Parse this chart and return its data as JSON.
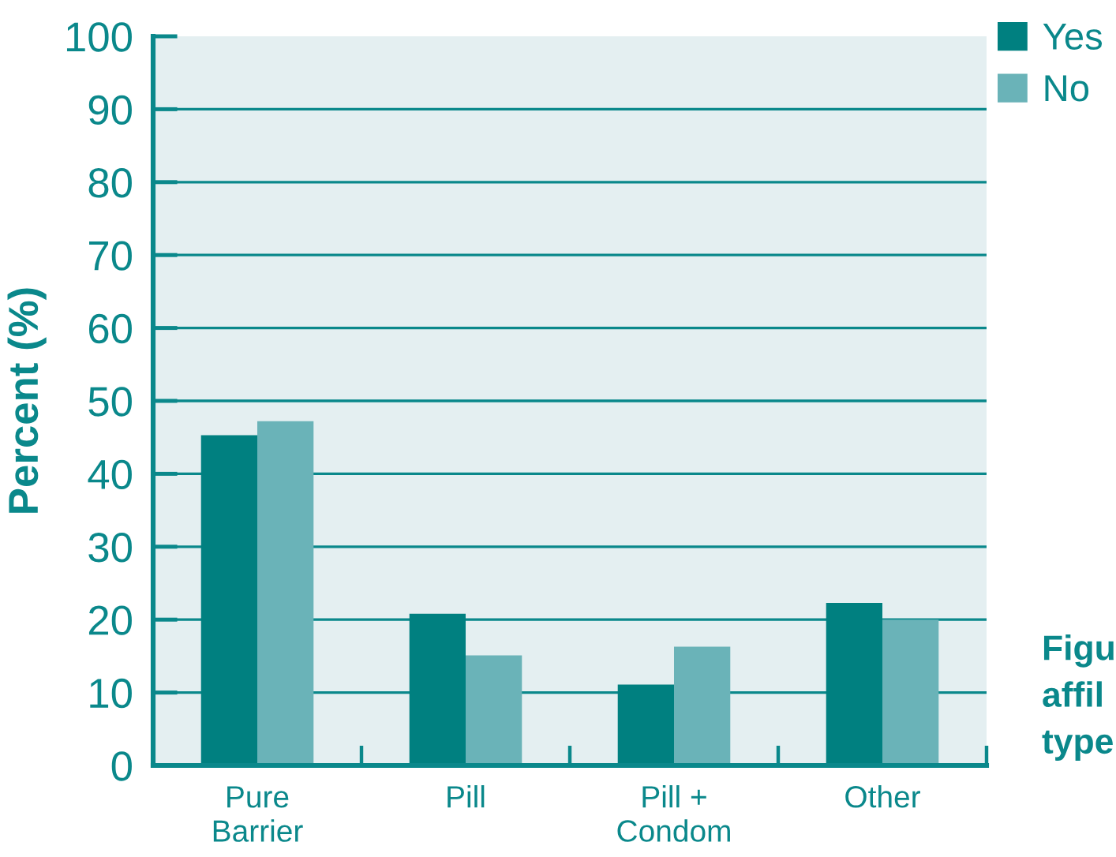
{
  "chart_data": {
    "type": "bar",
    "categories": [
      "Pure\nBarrier",
      "Pill",
      "Pill +\nCondom",
      "Other"
    ],
    "series": [
      {
        "name": "Yes",
        "color": "#008080",
        "values": [
          45.3,
          20.8,
          11.1,
          22.3
        ]
      },
      {
        "name": "No",
        "color": "#6ab3b8",
        "values": [
          47.2,
          15.1,
          16.3,
          20.0
        ]
      }
    ],
    "ylabel": "Percent (%)",
    "ylim": [
      0,
      100
    ],
    "yticks": [
      0,
      10,
      20,
      30,
      40,
      50,
      60,
      70,
      80,
      90,
      100
    ],
    "grid": "y",
    "legend": "top right",
    "annotations": [
      "Figu\naffil\ntype"
    ]
  }
}
